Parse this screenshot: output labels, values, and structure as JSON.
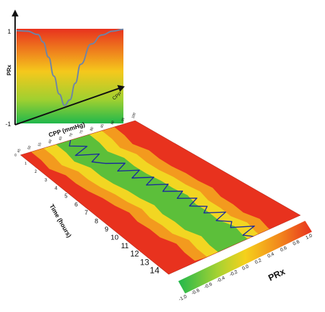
{
  "chart_data": [
    {
      "type": "line",
      "panel": "inset",
      "xlabel": "CPP",
      "ylabel": "PRx",
      "y_ticks": [
        "1",
        "-1"
      ],
      "ylim": [
        -1,
        1
      ],
      "x": [
        0,
        0.1,
        0.2,
        0.25,
        0.3,
        0.35,
        0.4,
        0.45,
        0.5,
        0.55,
        0.6,
        0.7,
        0.8,
        0.9,
        1.0
      ],
      "values": [
        0.96,
        0.95,
        0.88,
        0.72,
        0.4,
        0.0,
        -0.38,
        -0.62,
        -0.5,
        -0.15,
        0.25,
        0.68,
        0.87,
        0.95,
        0.99
      ],
      "background": "vertical gradient red (top) to green (bottom)",
      "colors": {
        "curve": "#6e84a6",
        "top": "#e8321e",
        "middle": "#f5c81c",
        "bottom": "#2cb84a"
      }
    },
    {
      "type": "heatmap",
      "panel": "main",
      "xlabel": "CPP (mmHg)",
      "ylabel": "Time (hours)",
      "x_ticks": [
        "45",
        "50",
        "55",
        "60",
        "65",
        "70",
        "75",
        "80",
        "85",
        "90",
        "95",
        "100"
      ],
      "y_ticks": [
        "0",
        "1",
        "2",
        "3",
        "4",
        "5",
        "6",
        "7",
        "8",
        "9",
        "10",
        "11",
        "12",
        "13",
        "14"
      ],
      "ylim": [
        0,
        14.5
      ],
      "xlim": [
        45,
        100
      ],
      "optimal_cpp_band_center": [
        [
          0,
          70
        ],
        [
          1,
          70
        ],
        [
          2,
          69
        ],
        [
          3,
          72
        ],
        [
          4,
          72
        ],
        [
          5,
          73
        ],
        [
          6,
          75
        ],
        [
          7,
          76
        ],
        [
          8,
          78
        ],
        [
          9,
          77
        ],
        [
          10,
          78
        ],
        [
          11,
          78
        ],
        [
          12,
          81
        ],
        [
          13,
          80
        ],
        [
          14,
          80
        ]
      ],
      "cpp_trace": [
        [
          0,
          69
        ],
        [
          0.5,
          66
        ],
        [
          1,
          72
        ],
        [
          1.5,
          64
        ],
        [
          2,
          73
        ],
        [
          2.5,
          67
        ],
        [
          3,
          71
        ],
        [
          3.5,
          78
        ],
        [
          4,
          72
        ],
        [
          4.5,
          80
        ],
        [
          5,
          74
        ],
        [
          5.5,
          82
        ],
        [
          6,
          76
        ],
        [
          6.5,
          84
        ],
        [
          7,
          79
        ],
        [
          7.5,
          86
        ],
        [
          8,
          81
        ],
        [
          8.5,
          88
        ],
        [
          9,
          82
        ],
        [
          9.5,
          88
        ],
        [
          10,
          84
        ],
        [
          10.5,
          92
        ],
        [
          11,
          85
        ],
        [
          11.5,
          90
        ],
        [
          12,
          87
        ],
        [
          12.5,
          96
        ],
        [
          13,
          88
        ],
        [
          13.5,
          92
        ],
        [
          14,
          89
        ]
      ],
      "colors": {
        "trace": "#1a2a9c",
        "high": "#e8321e",
        "mid": "#f5c81c",
        "low": "#2cb84a"
      }
    },
    {
      "type": "colorbar",
      "label": "PRx",
      "ticks": [
        "-1.0",
        "-0.8",
        "-0.6",
        "-0.4",
        "-0.2",
        "0.0",
        "0.2",
        "0.4",
        "0.6",
        "0.8",
        "1.0"
      ],
      "range": [
        -1,
        1
      ]
    }
  ]
}
